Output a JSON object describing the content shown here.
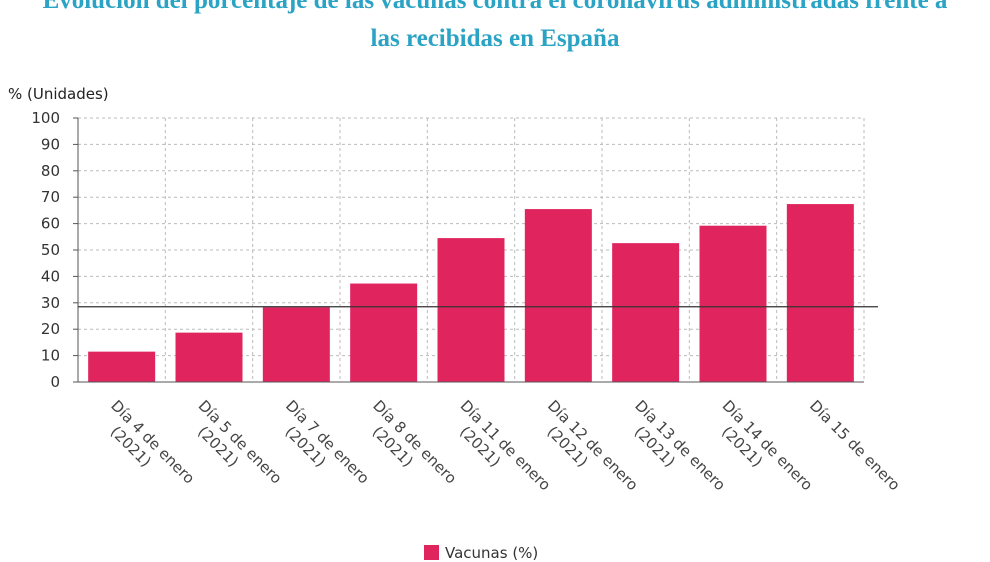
{
  "title_lines": [
    "Evolución del porcentaje de las vacunas contra el coronavirus administradas frente a",
    "las recibidas en España"
  ],
  "colors": {
    "title": "#2aa3c4",
    "bar": "#e0245e",
    "grid": "#bbbbbb",
    "axis": "#555555",
    "reference_line": "#333333"
  },
  "chart_data": {
    "type": "bar",
    "title": "Evolución del porcentaje de las vacunas contra el coronavirus administradas frente a las recibidas en España",
    "ylabel": "% (Unidades)",
    "xlabel": "",
    "ylim": [
      0,
      100
    ],
    "yticks": [
      0,
      10,
      20,
      30,
      40,
      50,
      60,
      70,
      80,
      90,
      100
    ],
    "grid": true,
    "legend_position": "bottom",
    "reference_line": 28.5,
    "categories": [
      [
        "Día 4 de enero",
        "(2021)"
      ],
      [
        "Día 5 de enero",
        "(2021)"
      ],
      [
        "Día 7 de enero",
        "(2021)"
      ],
      [
        "Día 8 de enero",
        "(2021)"
      ],
      [
        "Día 11 de enero",
        "(2021)"
      ],
      [
        "Día 12 de enero",
        "(2021)"
      ],
      [
        "Día 13 de enero",
        "(2021)"
      ],
      [
        "Día 14 de enero",
        "(2021)"
      ],
      [
        "Día 15 de enero"
      ]
    ],
    "series": [
      {
        "name": "Vacunas (%)",
        "values": [
          11.5,
          18.7,
          28.3,
          37.3,
          54.5,
          65.5,
          52.6,
          59.2,
          67.4
        ]
      }
    ]
  },
  "legend": {
    "label": "Vacunas (%)"
  }
}
